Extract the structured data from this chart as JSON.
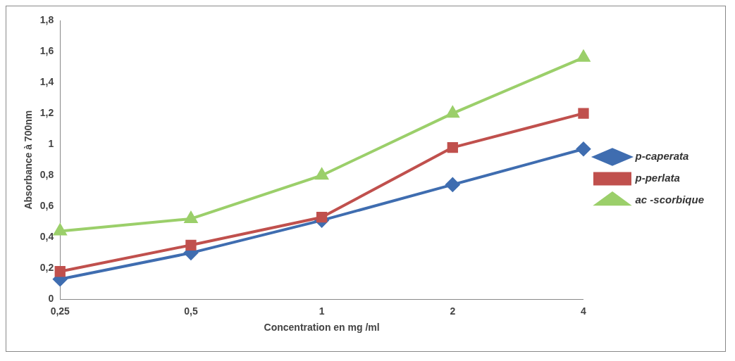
{
  "chart_data": {
    "type": "line",
    "xlabel": "Concentration en mg /ml",
    "ylabel": "Absorbance à 700nm",
    "categories": [
      "0,25",
      "0,5",
      "1",
      "2",
      "4"
    ],
    "ylim": [
      0,
      1.8
    ],
    "yticks": [
      {
        "value": 0,
        "label": "0"
      },
      {
        "value": 0.2,
        "label": "0,2"
      },
      {
        "value": 0.4,
        "label": "0,4"
      },
      {
        "value": 0.6,
        "label": "0,6"
      },
      {
        "value": 0.8,
        "label": "0,8"
      },
      {
        "value": 1,
        "label": "1"
      },
      {
        "value": 1.2,
        "label": "1,2"
      },
      {
        "value": 1.4,
        "label": "1,4"
      },
      {
        "value": 1.6,
        "label": "1,6"
      },
      {
        "value": 1.8,
        "label": "1,8"
      }
    ],
    "grid": false,
    "legend": "right",
    "series": [
      {
        "name": "p-caperata",
        "color": "#3f6db0",
        "marker": "diamond",
        "values": [
          0.13,
          0.3,
          0.51,
          0.74,
          0.97
        ]
      },
      {
        "name": "p-perlata",
        "color": "#c0504d",
        "marker": "square",
        "values": [
          0.18,
          0.35,
          0.53,
          0.98,
          1.2
        ]
      },
      {
        "name": "ac -scorbique",
        "color": "#9bcf6a",
        "marker": "triangle",
        "values": [
          0.44,
          0.52,
          0.8,
          1.2,
          1.56
        ]
      }
    ]
  }
}
